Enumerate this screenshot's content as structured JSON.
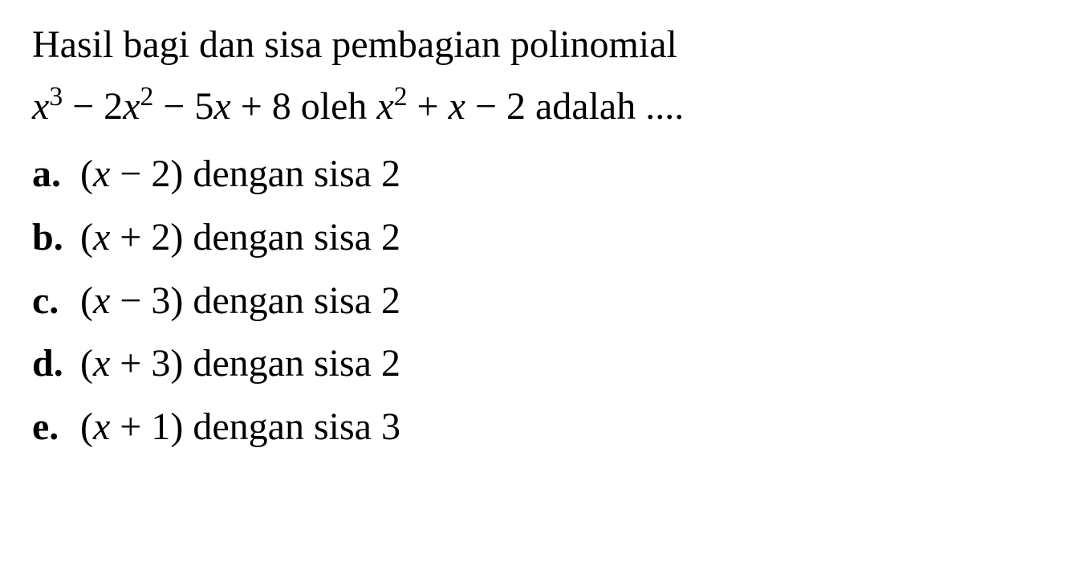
{
  "question": {
    "line1": "Hasil bagi dan sisa pembagian polinomial",
    "polynomial1_coef1": "x",
    "polynomial1_exp1": "3",
    "polynomial1_op1": " − 2",
    "polynomial1_coef2": "x",
    "polynomial1_exp2": "2",
    "polynomial1_op2": " − 5",
    "polynomial1_coef3": "x",
    "polynomial1_op3": " + 8 oleh ",
    "polynomial2_coef1": "x",
    "polynomial2_exp1": "2",
    "polynomial2_op1": " + ",
    "polynomial2_coef2": "x",
    "polynomial2_op2": " − 2 adalah ...."
  },
  "options": [
    {
      "label": "a.",
      "math_open": "(",
      "math_var": "x",
      "math_rest": " − 2)",
      "text": " dengan sisa 2"
    },
    {
      "label": "b.",
      "math_open": "(",
      "math_var": "x",
      "math_rest": " + 2)",
      "text": " dengan sisa 2"
    },
    {
      "label": "c.",
      "math_open": "(",
      "math_var": "x",
      "math_rest": " − 3)",
      "text": " dengan sisa 2"
    },
    {
      "label": "d.",
      "math_open": "(",
      "math_var": "x",
      "math_rest": " + 3)",
      "text": " dengan sisa 2"
    },
    {
      "label": "e.",
      "math_open": "(",
      "math_var": "x",
      "math_rest": " + 1)",
      "text": " dengan sisa 3"
    }
  ],
  "styling": {
    "font_family": "Times New Roman",
    "font_size_pt": 36,
    "text_color": "#000000",
    "background_color": "#ffffff",
    "label_font_weight": "bold",
    "line_height": 1.5
  }
}
